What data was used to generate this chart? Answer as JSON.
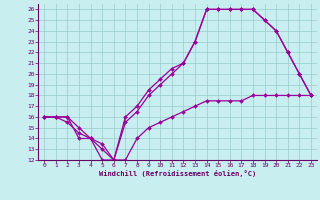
{
  "xlabel": "Windchill (Refroidissement éolien,°C)",
  "bg_color": "#c8eef0",
  "line_color": "#990099",
  "grid_color": "#99cccc",
  "xlim": [
    -0.5,
    23.5
  ],
  "ylim": [
    12,
    26.5
  ],
  "xticks": [
    0,
    1,
    2,
    3,
    4,
    5,
    6,
    7,
    8,
    9,
    10,
    11,
    12,
    13,
    14,
    15,
    16,
    17,
    18,
    19,
    20,
    21,
    22,
    23
  ],
  "yticks": [
    12,
    13,
    14,
    15,
    16,
    17,
    18,
    19,
    20,
    21,
    22,
    23,
    24,
    25,
    26
  ],
  "line1_x": [
    0,
    1,
    2,
    3,
    4,
    5,
    6,
    7,
    8,
    9,
    10,
    11,
    12,
    13,
    14,
    15,
    16,
    17,
    18,
    19,
    20,
    21,
    22,
    23
  ],
  "line1_y": [
    16,
    16,
    16,
    14,
    14,
    12,
    12,
    16,
    17,
    18.5,
    19.5,
    20.5,
    21,
    23,
    26,
    26,
    26,
    26,
    26,
    25,
    24,
    22,
    20,
    18
  ],
  "line2_x": [
    0,
    1,
    2,
    3,
    4,
    5,
    6,
    7,
    8,
    9,
    10,
    11,
    12,
    13,
    14,
    15,
    16,
    17,
    18,
    19,
    20,
    21,
    22,
    23
  ],
  "line2_y": [
    16,
    16,
    16,
    15,
    14,
    13,
    12,
    15.5,
    16.5,
    18,
    19,
    20,
    21,
    23,
    26,
    26,
    26,
    26,
    26,
    25,
    24,
    22,
    20,
    18
  ],
  "line3_x": [
    0,
    1,
    2,
    3,
    4,
    5,
    6,
    7,
    8,
    9,
    10,
    11,
    12,
    13,
    14,
    15,
    16,
    17,
    18,
    19,
    20,
    21,
    22,
    23
  ],
  "line3_y": [
    16,
    16,
    15.5,
    14.5,
    14,
    13.5,
    12,
    12,
    14,
    15,
    15.5,
    16,
    16.5,
    17,
    17.5,
    17.5,
    17.5,
    17.5,
    18,
    18,
    18,
    18,
    18,
    18
  ]
}
